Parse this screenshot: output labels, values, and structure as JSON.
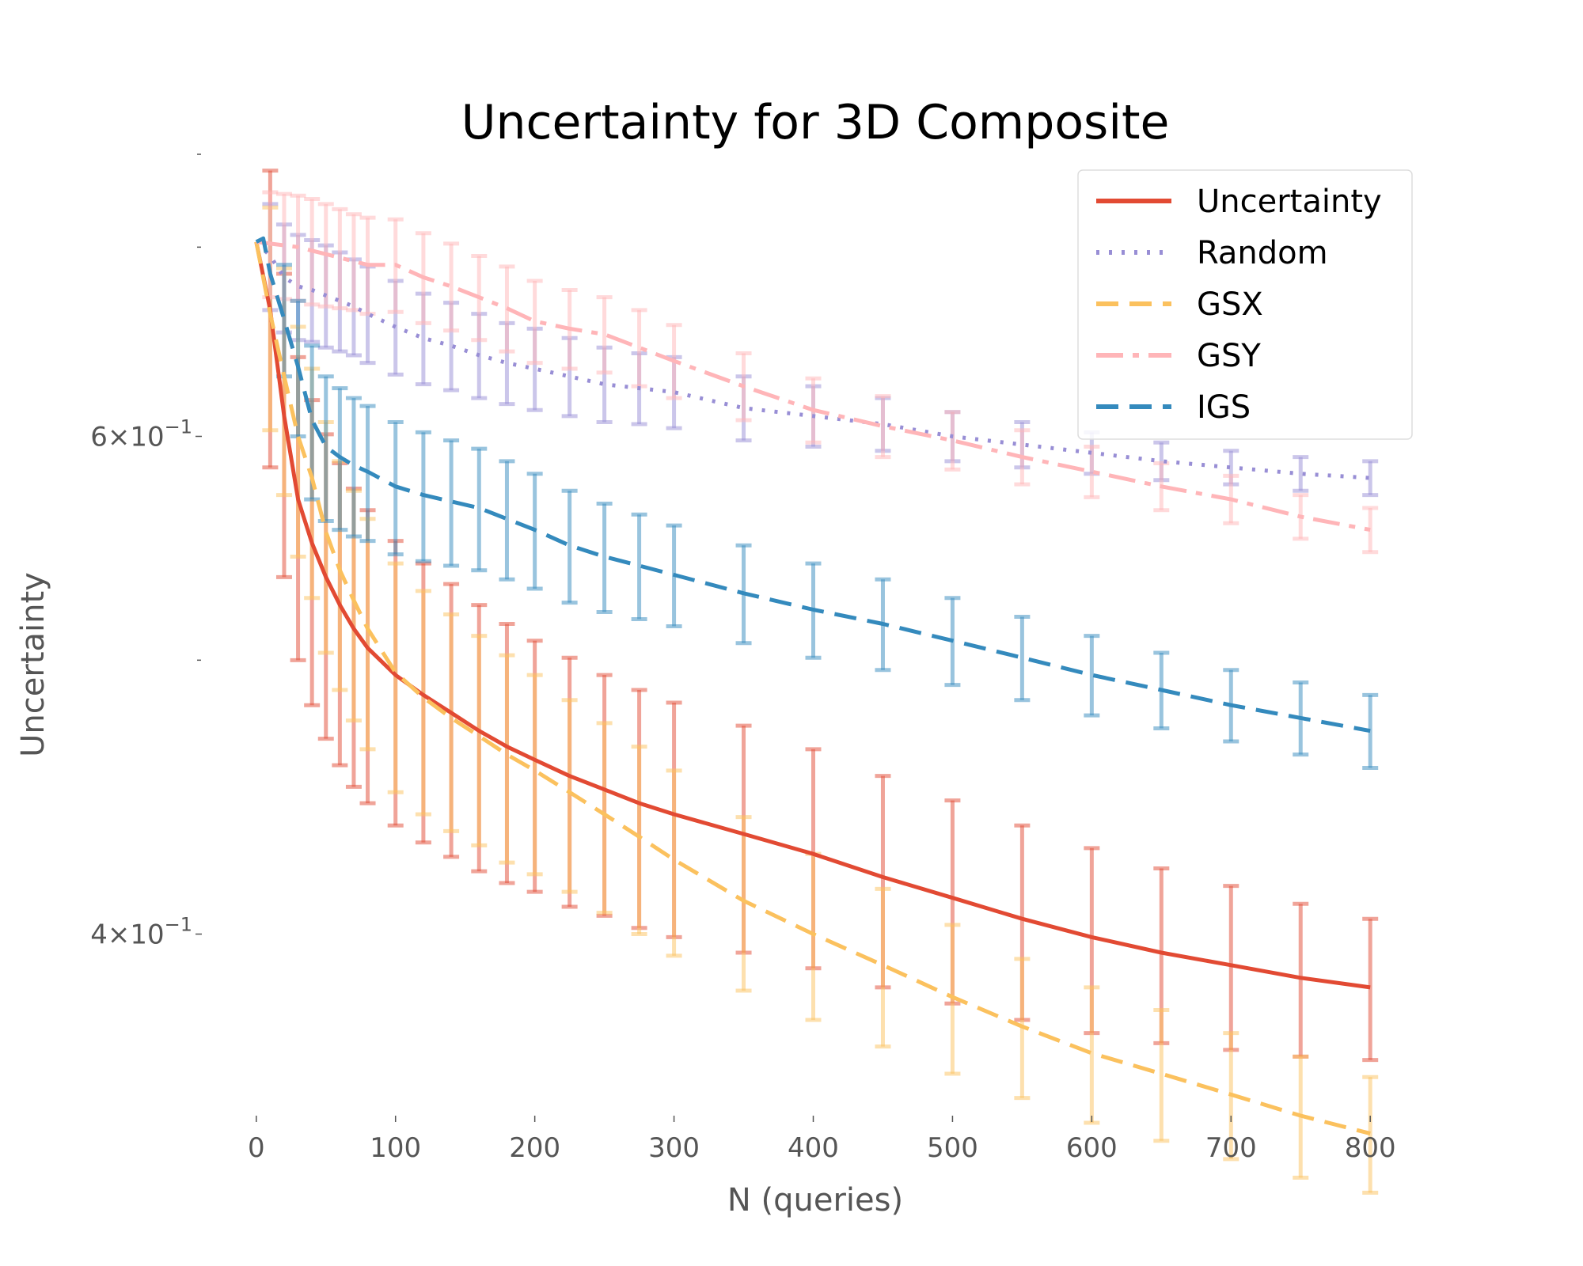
{
  "chart_data": {
    "type": "line",
    "title": "Uncertainty for 3D Composite",
    "xlabel": "N (queries)",
    "ylabel": "Uncertainty",
    "yscale": "log",
    "xlim": [
      -5,
      805
    ],
    "ylim": [
      0.345,
      0.755
    ],
    "x_ticks": [
      0,
      100,
      200,
      300,
      400,
      500,
      600,
      700,
      800
    ],
    "x_tick_labels": [
      "0",
      "100",
      "200",
      "300",
      "400",
      "500",
      "600",
      "700",
      "800"
    ],
    "y_major_ticks": [
      0.4,
      0.6
    ],
    "y_major_tick_labels": [
      {
        "base": "4",
        "exp": "−1"
      },
      {
        "base": "6",
        "exp": "−1"
      }
    ],
    "y_minor_ticks": [
      0.5,
      0.7
    ],
    "grid": false,
    "legend": "top-right",
    "series": [
      {
        "name": "Uncertainty",
        "color": "#E24A33",
        "style": "solid",
        "x": [
          0,
          10,
          20,
          30,
          40,
          50,
          60,
          70,
          80,
          100,
          120,
          140,
          160,
          180,
          200,
          225,
          250,
          275,
          300,
          350,
          400,
          450,
          500,
          550,
          600,
          650,
          700,
          750,
          800
        ],
        "y": [
          0.703,
          0.665,
          0.61,
          0.57,
          0.55,
          0.535,
          0.523,
          0.513,
          0.505,
          0.494,
          0.486,
          0.479,
          0.472,
          0.466,
          0.461,
          0.455,
          0.45,
          0.445,
          0.441,
          0.434,
          0.427,
          0.419,
          0.412,
          0.405,
          0.399,
          0.394,
          0.39,
          0.386,
          0.383
        ],
        "err": [
          0.0,
          0.08,
          0.075,
          0.07,
          0.068,
          0.066,
          0.064,
          0.062,
          0.06,
          0.057,
          0.055,
          0.053,
          0.051,
          0.049,
          0.047,
          0.046,
          0.044,
          0.043,
          0.042,
          0.04,
          0.038,
          0.036,
          0.034,
          0.032,
          0.03,
          0.028,
          0.026,
          0.024,
          0.022
        ]
      },
      {
        "name": "Random",
        "color": "#988ED5",
        "style": "dotted",
        "x": [
          0,
          10,
          20,
          30,
          40,
          50,
          60,
          70,
          80,
          100,
          120,
          140,
          160,
          180,
          200,
          225,
          250,
          275,
          300,
          350,
          400,
          450,
          500,
          550,
          600,
          650,
          700,
          750,
          800
        ],
        "y": [
          0.703,
          0.695,
          0.683,
          0.678,
          0.676,
          0.673,
          0.67,
          0.667,
          0.663,
          0.656,
          0.65,
          0.646,
          0.641,
          0.637,
          0.634,
          0.63,
          0.626,
          0.624,
          0.622,
          0.614,
          0.61,
          0.606,
          0.6,
          0.596,
          0.592,
          0.588,
          0.585,
          0.582,
          0.58
        ],
        "err": [
          0.0,
          0.03,
          0.03,
          0.029,
          0.028,
          0.028,
          0.027,
          0.026,
          0.026,
          0.025,
          0.024,
          0.023,
          0.022,
          0.021,
          0.021,
          0.02,
          0.019,
          0.018,
          0.018,
          0.016,
          0.015,
          0.013,
          0.012,
          0.011,
          0.01,
          0.009,
          0.008,
          0.008,
          0.008
        ]
      },
      {
        "name": "GSX",
        "color": "#FBC15E",
        "style": "dashed",
        "x": [
          0,
          10,
          20,
          30,
          40,
          50,
          60,
          70,
          80,
          100,
          120,
          140,
          160,
          180,
          200,
          225,
          250,
          275,
          300,
          350,
          400,
          450,
          500,
          550,
          600,
          650,
          700,
          750,
          800
        ],
        "y": [
          0.703,
          0.663,
          0.63,
          0.6,
          0.58,
          0.555,
          0.538,
          0.525,
          0.513,
          0.495,
          0.485,
          0.477,
          0.47,
          0.463,
          0.457,
          0.449,
          0.441,
          0.433,
          0.425,
          0.411,
          0.4,
          0.39,
          0.38,
          0.371,
          0.363,
          0.357,
          0.351,
          0.345,
          0.34
        ],
        "err": [
          0.0,
          0.06,
          0.058,
          0.056,
          0.054,
          0.052,
          0.05,
          0.049,
          0.048,
          0.046,
          0.044,
          0.042,
          0.04,
          0.039,
          0.037,
          0.035,
          0.034,
          0.033,
          0.032,
          0.029,
          0.027,
          0.025,
          0.023,
          0.021,
          0.02,
          0.019,
          0.018,
          0.017,
          0.016
        ]
      },
      {
        "name": "GSY",
        "color": "#FFB5B8",
        "style": "dashdot",
        "x": [
          0,
          10,
          20,
          30,
          40,
          50,
          60,
          70,
          80,
          100,
          120,
          140,
          160,
          180,
          200,
          225,
          250,
          275,
          300,
          350,
          400,
          450,
          500,
          550,
          600,
          650,
          700,
          750,
          800
        ],
        "y": [
          0.703,
          0.702,
          0.701,
          0.7,
          0.698,
          0.696,
          0.694,
          0.692,
          0.69,
          0.69,
          0.683,
          0.678,
          0.672,
          0.666,
          0.659,
          0.655,
          0.652,
          0.645,
          0.638,
          0.625,
          0.613,
          0.605,
          0.598,
          0.59,
          0.583,
          0.576,
          0.57,
          0.562,
          0.556
        ],
        "err": [
          0.0,
          0.03,
          0.03,
          0.03,
          0.03,
          0.029,
          0.028,
          0.027,
          0.027,
          0.026,
          0.025,
          0.024,
          0.023,
          0.023,
          0.022,
          0.021,
          0.02,
          0.02,
          0.019,
          0.017,
          0.016,
          0.015,
          0.014,
          0.013,
          0.012,
          0.011,
          0.011,
          0.01,
          0.01
        ]
      },
      {
        "name": "IGS",
        "color": "#348ABD",
        "style": "dashed",
        "x": [
          0,
          5,
          10,
          20,
          30,
          40,
          50,
          60,
          70,
          80,
          100,
          120,
          140,
          160,
          180,
          200,
          225,
          250,
          275,
          300,
          350,
          400,
          450,
          500,
          550,
          600,
          650,
          700,
          750,
          800
        ],
        "y": [
          0.703,
          0.705,
          0.685,
          0.66,
          0.635,
          0.608,
          0.595,
          0.59,
          0.586,
          0.583,
          0.576,
          0.572,
          0.569,
          0.566,
          0.561,
          0.556,
          0.549,
          0.544,
          0.54,
          0.536,
          0.528,
          0.521,
          0.515,
          0.508,
          0.501,
          0.494,
          0.488,
          0.482,
          0.477,
          0.472
        ],
        "err": [
          0.0,
          0.0,
          0.0,
          0.03,
          0.035,
          0.038,
          0.035,
          0.034,
          0.033,
          0.032,
          0.031,
          0.03,
          0.029,
          0.028,
          0.027,
          0.026,
          0.025,
          0.024,
          0.023,
          0.022,
          0.021,
          0.02,
          0.019,
          0.018,
          0.017,
          0.016,
          0.015,
          0.014,
          0.014,
          0.014
        ]
      }
    ]
  }
}
